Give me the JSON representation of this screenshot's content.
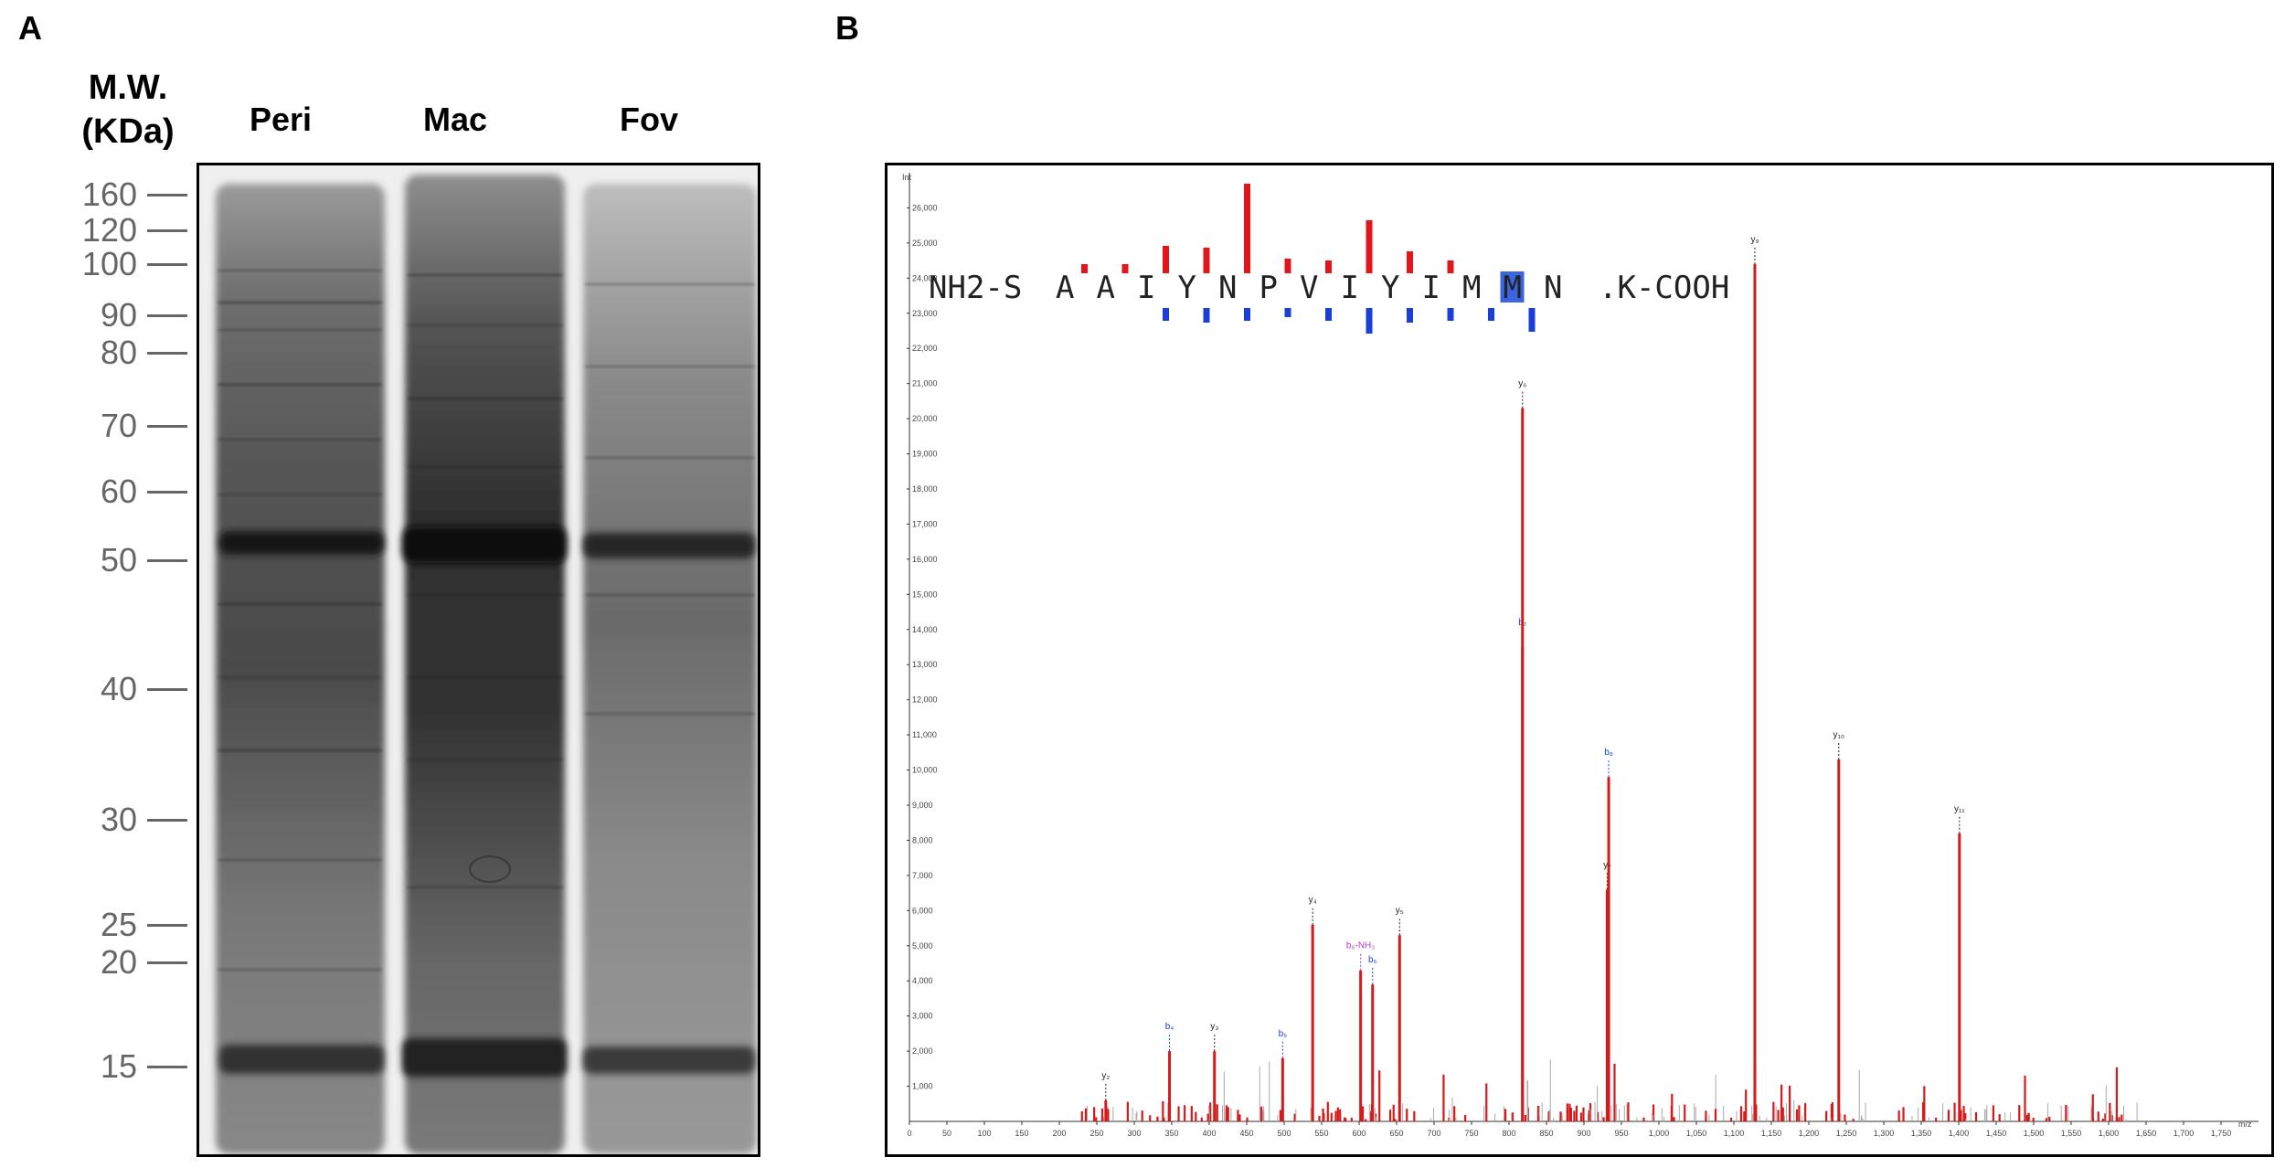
{
  "panel_a": {
    "letter": "A",
    "mw_title_line1": "M.W.",
    "mw_title_line2": "(KDa)",
    "lanes": [
      "Peri",
      "Mac",
      "Fov"
    ],
    "markers": [
      "160",
      "120",
      "100",
      "90",
      "80",
      "70",
      "60",
      "50",
      "40",
      "30",
      "25",
      "20",
      "15"
    ]
  },
  "panel_b": {
    "letter": "B",
    "y_axis_title": "Int",
    "x_axis_title": "m/z",
    "sequence_prefix": "NH2-S",
    "sequence_residues": [
      "A",
      "A",
      "I",
      "Y",
      "N",
      "P",
      "V",
      "I",
      "Y",
      "I",
      "M",
      "M",
      "N"
    ],
    "sequence_suffix": ".K-COOH"
  },
  "chart_data": {
    "type": "bar",
    "title": "NH2-S A A I Y N P V I Y I M M N.K-COOH",
    "xlabel": "m/z",
    "ylabel": "Int",
    "xlim": [
      0,
      1800
    ],
    "ylim": [
      0,
      27000
    ],
    "x_ticks": [
      "0",
      "50",
      "100",
      "150",
      "200",
      "250",
      "300",
      "350",
      "400",
      "450",
      "500",
      "550",
      "600",
      "650",
      "700",
      "750",
      "800",
      "850",
      "900",
      "950",
      "1,000",
      "1,050",
      "1,100",
      "1,150",
      "1,200",
      "1,250",
      "1,300",
      "1,350",
      "1,400",
      "1,450",
      "1,500",
      "1,550",
      "1,600",
      "1,650",
      "1,700",
      "1,750"
    ],
    "y_ticks": [
      "1,000",
      "2,000",
      "3,000",
      "4,000",
      "5,000",
      "6,000",
      "7,000",
      "8,000",
      "9,000",
      "10,000",
      "11,000",
      "12,000",
      "13,000",
      "14,000",
      "15,000",
      "16,000",
      "17,000",
      "18,000",
      "19,000",
      "20,000",
      "21,000",
      "22,000",
      "23,000",
      "24,000",
      "25,000",
      "26,000"
    ],
    "peaks": [
      {
        "mz": 262,
        "intensity": 600,
        "label": "y₂",
        "color": "#222222"
      },
      {
        "mz": 347,
        "intensity": 2000,
        "label": "b₄",
        "color": "#1a3fd8"
      },
      {
        "mz": 407,
        "intensity": 2000,
        "label": "y₃",
        "color": "#222222"
      },
      {
        "mz": 498,
        "intensity": 1800,
        "label": "b₅",
        "color": "#1a3fd8"
      },
      {
        "mz": 538,
        "intensity": 5600,
        "label": "y₄",
        "color": "#222222"
      },
      {
        "mz": 602,
        "intensity": 4300,
        "label": "b₆-NH₃",
        "color": "#b83cb8"
      },
      {
        "mz": 618,
        "intensity": 3900,
        "label": "b₆",
        "color": "#1a3fd8"
      },
      {
        "mz": 654,
        "intensity": 5300,
        "label": "y₅",
        "color": "#222222"
      },
      {
        "mz": 818,
        "intensity": 13500,
        "label": "b₇",
        "color": "#1a3fd8"
      },
      {
        "mz": 818,
        "intensity": 20300,
        "label": "y₆",
        "color": "#222222"
      },
      {
        "mz": 931,
        "intensity": 6600,
        "label": "y₇",
        "color": "#222222"
      },
      {
        "mz": 933,
        "intensity": 9800,
        "label": "b₈",
        "color": "#1a3fd8"
      },
      {
        "mz": 1128,
        "intensity": 24400,
        "label": "y₉",
        "color": "#222222"
      },
      {
        "mz": 1240,
        "intensity": 10300,
        "label": "y₁₀",
        "color": "#222222"
      },
      {
        "mz": 1401,
        "intensity": 8200,
        "label": "y₁₁",
        "color": "#222222"
      }
    ]
  }
}
